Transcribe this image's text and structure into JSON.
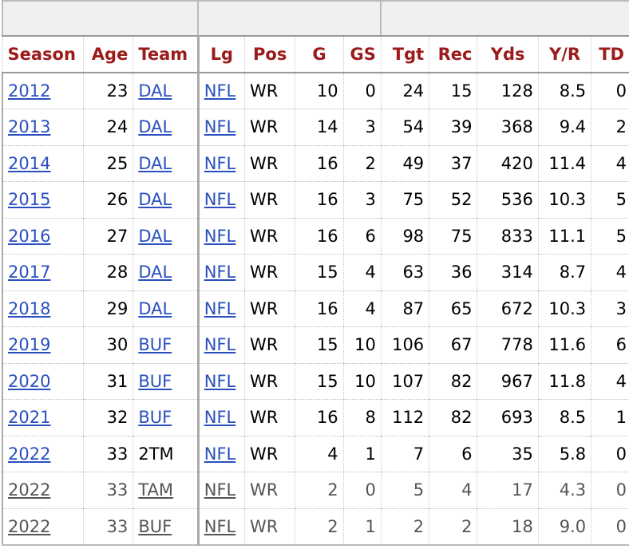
{
  "columns": [
    "Season",
    "Age",
    "Team",
    "Lg",
    "Pos",
    "G",
    "GS",
    "Tgt",
    "Rec",
    "Yds",
    "Y/R",
    "TD"
  ],
  "rows": [
    {
      "season": "2012",
      "age": "23",
      "team": "DAL",
      "lg": "NFL",
      "pos": "WR",
      "g": "10",
      "gs": "0",
      "tgt": "24",
      "rec": "15",
      "yds": "128",
      "ypr": "8.5",
      "td": "0",
      "team_link": true,
      "partial": false
    },
    {
      "season": "2013",
      "age": "24",
      "team": "DAL",
      "lg": "NFL",
      "pos": "WR",
      "g": "14",
      "gs": "3",
      "tgt": "54",
      "rec": "39",
      "yds": "368",
      "ypr": "9.4",
      "td": "2",
      "team_link": true,
      "partial": false
    },
    {
      "season": "2014",
      "age": "25",
      "team": "DAL",
      "lg": "NFL",
      "pos": "WR",
      "g": "16",
      "gs": "2",
      "tgt": "49",
      "rec": "37",
      "yds": "420",
      "ypr": "11.4",
      "td": "4",
      "team_link": true,
      "partial": false
    },
    {
      "season": "2015",
      "age": "26",
      "team": "DAL",
      "lg": "NFL",
      "pos": "WR",
      "g": "16",
      "gs": "3",
      "tgt": "75",
      "rec": "52",
      "yds": "536",
      "ypr": "10.3",
      "td": "5",
      "team_link": true,
      "partial": false
    },
    {
      "season": "2016",
      "age": "27",
      "team": "DAL",
      "lg": "NFL",
      "pos": "WR",
      "g": "16",
      "gs": "6",
      "tgt": "98",
      "rec": "75",
      "yds": "833",
      "ypr": "11.1",
      "td": "5",
      "team_link": true,
      "partial": false
    },
    {
      "season": "2017",
      "age": "28",
      "team": "DAL",
      "lg": "NFL",
      "pos": "WR",
      "g": "15",
      "gs": "4",
      "tgt": "63",
      "rec": "36",
      "yds": "314",
      "ypr": "8.7",
      "td": "4",
      "team_link": true,
      "partial": false
    },
    {
      "season": "2018",
      "age": "29",
      "team": "DAL",
      "lg": "NFL",
      "pos": "WR",
      "g": "16",
      "gs": "4",
      "tgt": "87",
      "rec": "65",
      "yds": "672",
      "ypr": "10.3",
      "td": "3",
      "team_link": true,
      "partial": false
    },
    {
      "season": "2019",
      "age": "30",
      "team": "BUF",
      "lg": "NFL",
      "pos": "WR",
      "g": "15",
      "gs": "10",
      "tgt": "106",
      "rec": "67",
      "yds": "778",
      "ypr": "11.6",
      "td": "6",
      "team_link": true,
      "partial": false
    },
    {
      "season": "2020",
      "age": "31",
      "team": "BUF",
      "lg": "NFL",
      "pos": "WR",
      "g": "15",
      "gs": "10",
      "tgt": "107",
      "rec": "82",
      "yds": "967",
      "ypr": "11.8",
      "td": "4",
      "team_link": true,
      "partial": false
    },
    {
      "season": "2021",
      "age": "32",
      "team": "BUF",
      "lg": "NFL",
      "pos": "WR",
      "g": "16",
      "gs": "8",
      "tgt": "112",
      "rec": "82",
      "yds": "693",
      "ypr": "8.5",
      "td": "1",
      "team_link": true,
      "partial": false
    },
    {
      "season": "2022",
      "age": "33",
      "team": "2TM",
      "lg": "NFL",
      "pos": "WR",
      "g": "4",
      "gs": "1",
      "tgt": "7",
      "rec": "6",
      "yds": "35",
      "ypr": "5.8",
      "td": "0",
      "team_link": false,
      "partial": false
    },
    {
      "season": "2022",
      "age": "33",
      "team": "TAM",
      "lg": "NFL",
      "pos": "WR",
      "g": "2",
      "gs": "0",
      "tgt": "5",
      "rec": "4",
      "yds": "17",
      "ypr": "4.3",
      "td": "0",
      "team_link": true,
      "partial": true
    },
    {
      "season": "2022",
      "age": "33",
      "team": "BUF",
      "lg": "NFL",
      "pos": "WR",
      "g": "2",
      "gs": "1",
      "tgt": "2",
      "rec": "2",
      "yds": "18",
      "ypr": "9.0",
      "td": "0",
      "team_link": true,
      "partial": true
    }
  ],
  "colors": {
    "header_text": "#9b1b1b",
    "link": "#2a4fbf",
    "partial_text": "#555555"
  }
}
